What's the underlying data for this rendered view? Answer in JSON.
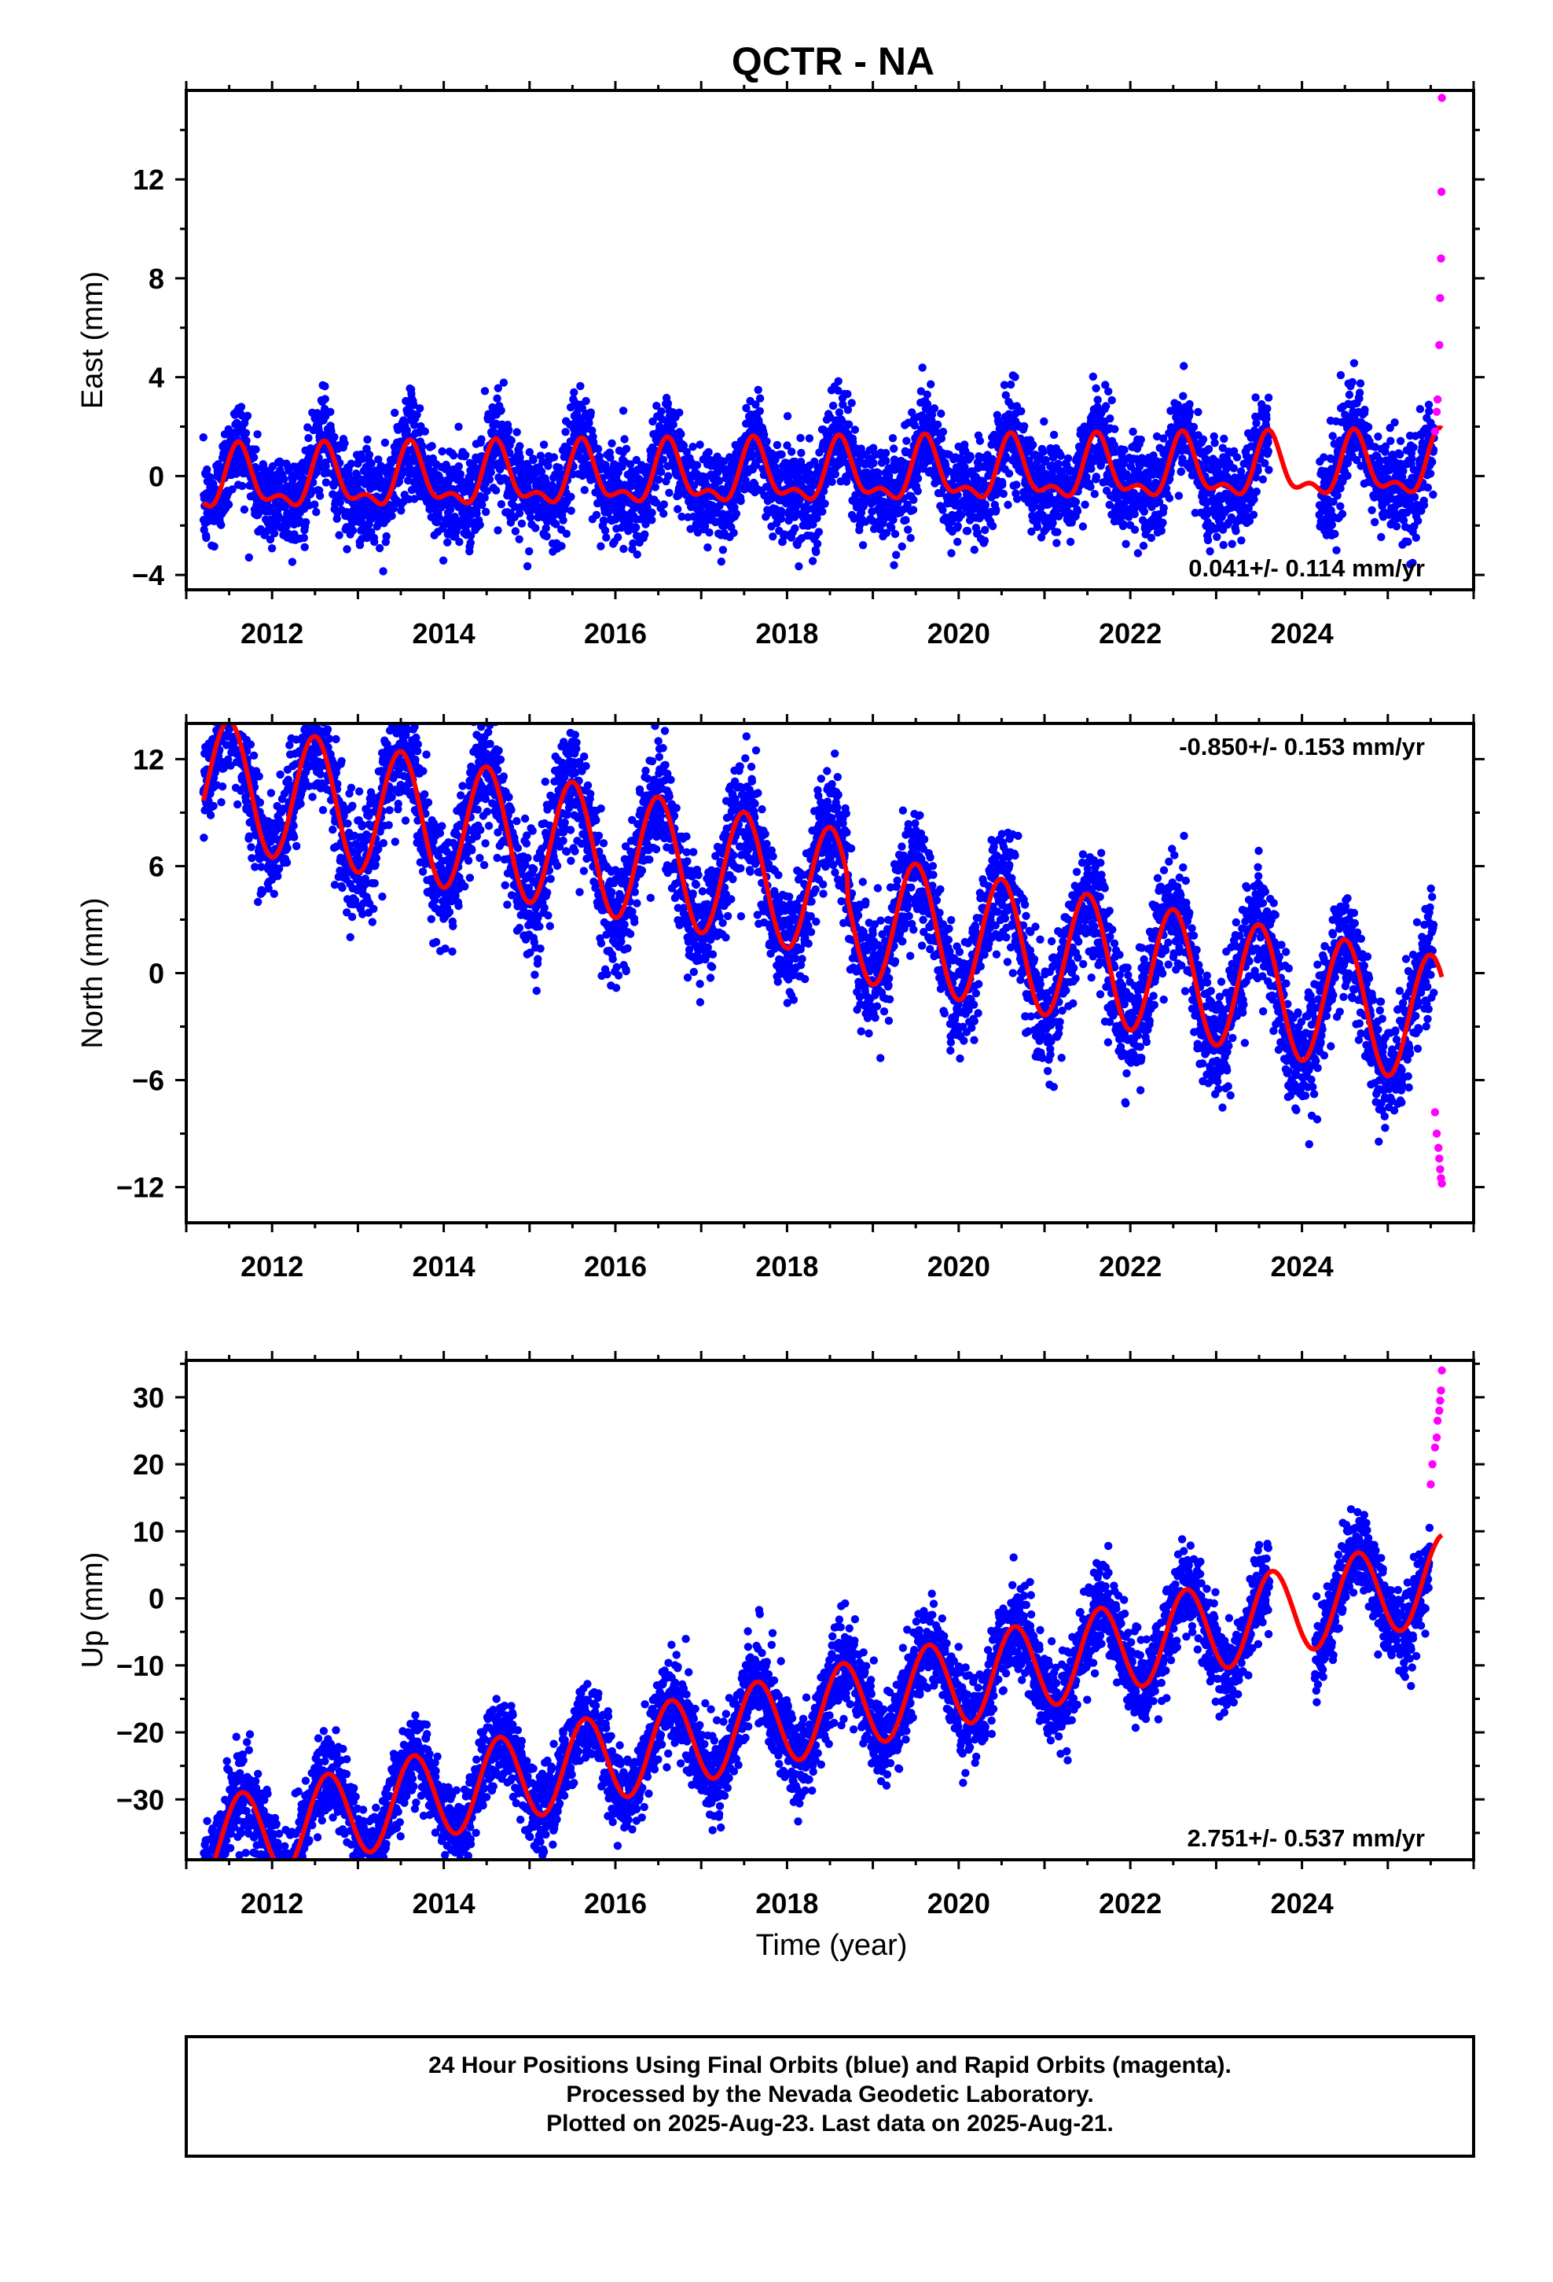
{
  "title": "QCTR - NA",
  "x_label": "Time (year)",
  "footer": [
    "24 Hour Positions Using Final Orbits (blue) and Rapid Orbits (magenta).",
    "Processed by the Nevada Geodetic Laboratory.",
    "Plotted on 2025-Aug-23. Last data on 2025-Aug-21."
  ],
  "colors": {
    "final": "#0000ff",
    "rapid": "#ff00ff",
    "model": "#ff0000",
    "frame": "#000000"
  },
  "chart_data": [
    {
      "type": "scatter",
      "ylabel": "East (mm)",
      "xlim": [
        2011.0,
        2026.0
      ],
      "ylim": [
        -4.6,
        15.6
      ],
      "xticks": [
        "2012",
        "2014",
        "2016",
        "2018",
        "2020",
        "2022",
        "2024"
      ],
      "yticks": [
        "−4",
        "0",
        "4",
        "8",
        "12"
      ],
      "rate_label": "0.041+/- 0.114 mm/yr",
      "rate_position": "bottom-right",
      "data_span": [
        2011.2,
        2025.63
      ],
      "gaps": [
        [
          2023.62,
          2024.2
        ]
      ],
      "model": {
        "offset": 0.0,
        "trend_mm_per_yr": 0.041,
        "annual_amplitude": 1.1,
        "annual_peak": 2011.62,
        "semiannual_amplitude": 0.55,
        "semiannual_peak": 2011.6,
        "scatter_sigma": 0.95
      },
      "rapid_points": {
        "x": [
          2025.55,
          2025.57,
          2025.58,
          2025.6,
          2025.61,
          2025.62,
          2025.625,
          2025.63
        ],
        "y": [
          1.8,
          2.6,
          3.1,
          5.3,
          7.2,
          8.8,
          11.5,
          15.3
        ]
      }
    },
    {
      "type": "scatter",
      "ylabel": "North (mm)",
      "xlim": [
        2011.0,
        2026.0
      ],
      "ylim": [
        -14.0,
        14.0
      ],
      "xticks": [
        "2012",
        "2014",
        "2016",
        "2018",
        "2020",
        "2022",
        "2024"
      ],
      "yticks": [
        "−12",
        "−6",
        "0",
        "6",
        "12"
      ],
      "rate_label": "-0.850+/- 0.153 mm/yr",
      "rate_position": "top-right",
      "data_span": [
        2011.2,
        2025.63
      ],
      "gaps": [],
      "model": {
        "offset": 5.0,
        "trend_mm_per_yr": -0.85,
        "annual_amplitude": 3.6,
        "annual_peak": 2011.5,
        "semiannual_amplitude": 0.0,
        "semiannual_peak": 2011.5,
        "scatter_sigma": 1.6,
        "step": {
          "at": 2018.7,
          "size": -1.2
        }
      },
      "rapid_points": {
        "x": [
          2025.55,
          2025.57,
          2025.59,
          2025.6,
          2025.61,
          2025.62,
          2025.63
        ],
        "y": [
          -7.8,
          -9.0,
          -9.8,
          -10.4,
          -11.0,
          -11.5,
          -11.8
        ]
      }
    },
    {
      "type": "scatter",
      "ylabel": "Up (mm)",
      "xlim": [
        2011.0,
        2026.0
      ],
      "ylim": [
        -39.0,
        35.5
      ],
      "xticks": [
        "2012",
        "2014",
        "2016",
        "2018",
        "2020",
        "2022",
        "2024"
      ],
      "yticks": [
        "−30",
        "−20",
        "−10",
        "0",
        "10",
        "20",
        "30"
      ],
      "rate_label": "2.751+/- 0.537 mm/yr",
      "rate_position": "bottom-right",
      "data_span": [
        2011.2,
        2025.63
      ],
      "gaps": [
        [
          2023.62,
          2024.15
        ]
      ],
      "model": {
        "offset": -18.0,
        "trend_mm_per_yr": 2.751,
        "annual_amplitude": 6.5,
        "annual_peak": 2011.65,
        "semiannual_amplitude": 0.0,
        "semiannual_peak": 2011.6,
        "scatter_sigma": 3.2
      },
      "rapid_points": {
        "x": [
          2025.5,
          2025.52,
          2025.55,
          2025.57,
          2025.58,
          2025.6,
          2025.61,
          2025.62,
          2025.63
        ],
        "y": [
          17.0,
          20.0,
          22.5,
          24.0,
          26.5,
          28.0,
          29.5,
          31.0,
          34.0
        ]
      }
    }
  ]
}
